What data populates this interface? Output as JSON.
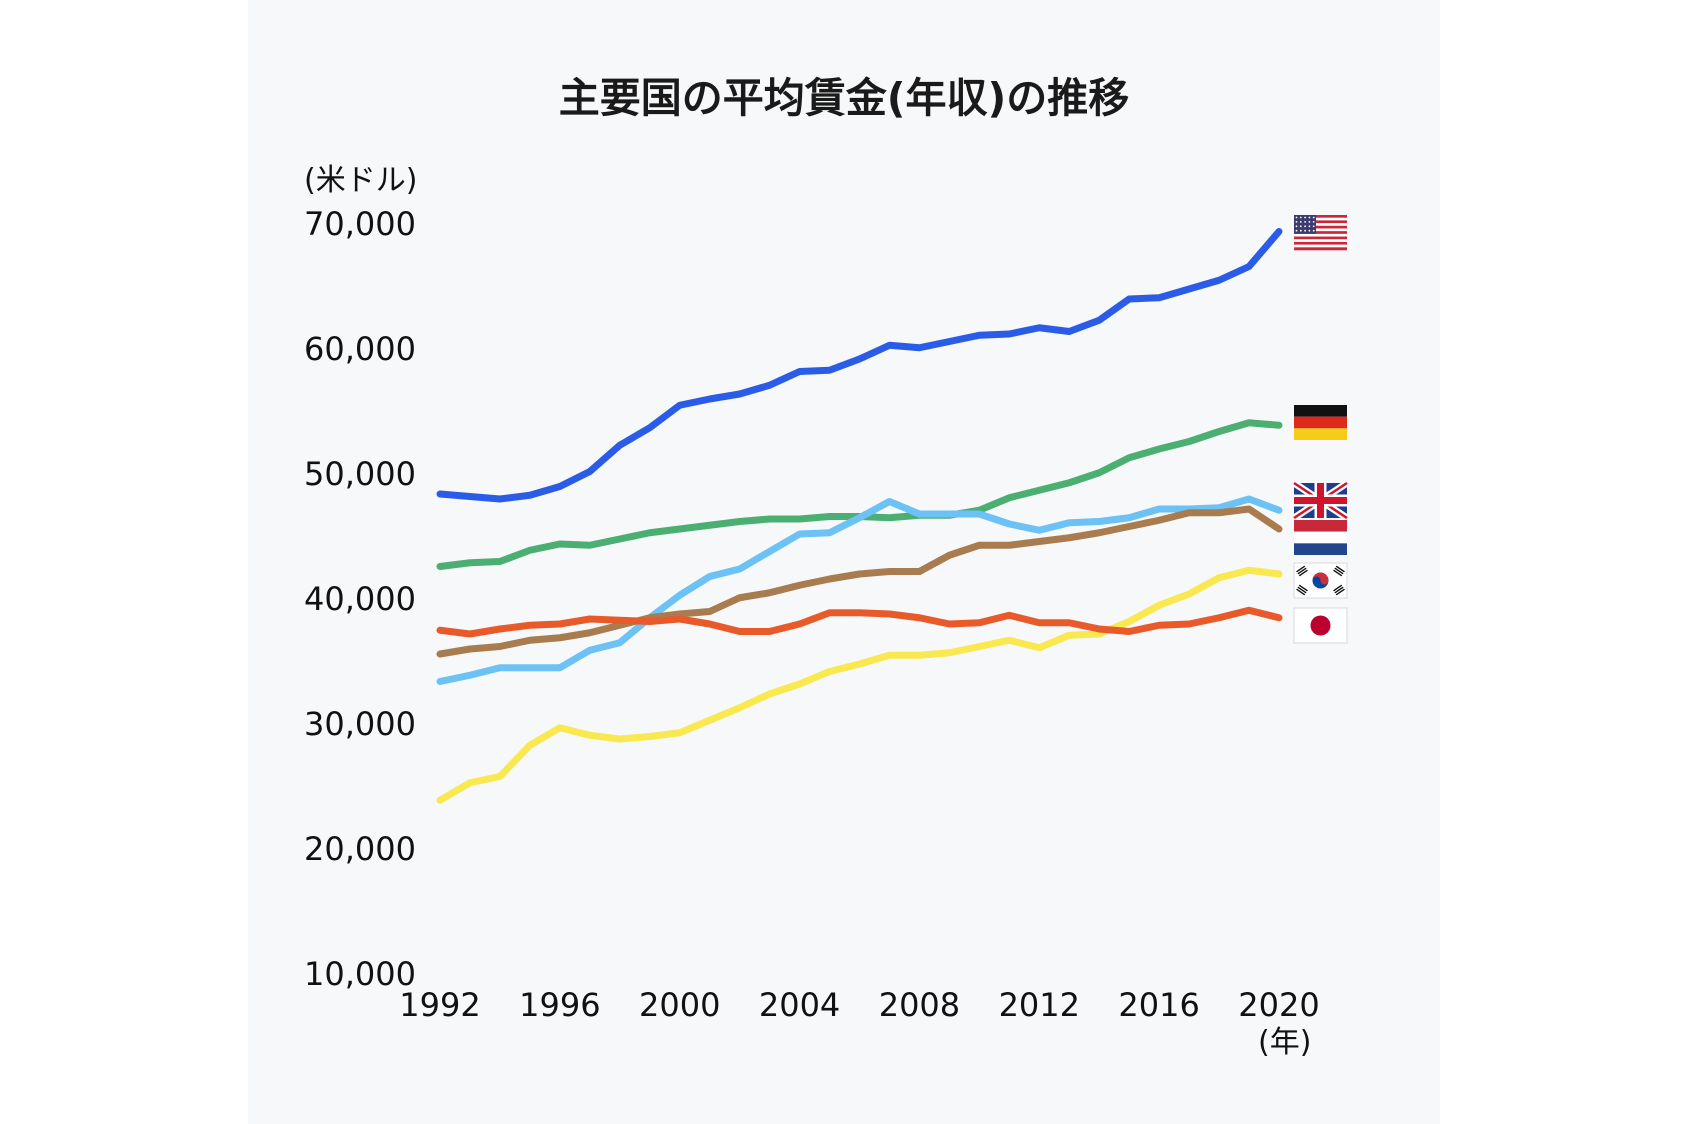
{
  "chart_data": {
    "type": "line",
    "title": "主要国の平均賃金(年収)の推移",
    "y_unit_label": "(米ドル)",
    "x_unit_label": "(年)",
    "ylim": [
      10000,
      70000
    ],
    "xlim": [
      1992,
      2020
    ],
    "y_ticks": [
      10000,
      20000,
      30000,
      40000,
      50000,
      60000,
      70000
    ],
    "y_tick_labels": [
      "10,000",
      "20,000",
      "30,000",
      "40,000",
      "50,000",
      "60,000",
      "70,000"
    ],
    "x_ticks": [
      1992,
      1996,
      2000,
      2004,
      2008,
      2012,
      2016,
      2020
    ],
    "x_tick_labels": [
      "1992",
      "1996",
      "2000",
      "2004",
      "2008",
      "2012",
      "2016",
      "2020"
    ],
    "grid": false,
    "legend": "flag icons at right end of lines",
    "x": [
      1992,
      1993,
      1994,
      1995,
      1996,
      1997,
      1998,
      1999,
      2000,
      2001,
      2002,
      2003,
      2004,
      2005,
      2006,
      2007,
      2008,
      2009,
      2010,
      2011,
      2012,
      2013,
      2014,
      2015,
      2016,
      2017,
      2018,
      2019,
      2020
    ],
    "series": [
      {
        "flag": "usa-flag-icon",
        "color": "#2a5ce8",
        "values": [
          48400,
          48200,
          48000,
          48300,
          49000,
          50200,
          52300,
          53700,
          55500,
          56000,
          56400,
          57100,
          58200,
          58300,
          59200,
          60300,
          60100,
          60600,
          61100,
          61200,
          61700,
          61400,
          62300,
          64000,
          64100,
          64800,
          65500,
          66600,
          69400
        ]
      },
      {
        "flag": "germany-flag-icon",
        "color": "#4caf72",
        "values": [
          42600,
          42900,
          43000,
          43900,
          44400,
          44300,
          44800,
          45300,
          45600,
          45900,
          46200,
          46400,
          46400,
          46600,
          46600,
          46500,
          46700,
          46700,
          47100,
          48100,
          48700,
          49300,
          50100,
          51300,
          52000,
          52600,
          53400,
          54100,
          53900
        ]
      },
      {
        "flag": "uk-flag-icon",
        "color": "#6cc1f5",
        "values": [
          33400,
          33900,
          34500,
          34500,
          34500,
          35900,
          36500,
          38500,
          40300,
          41800,
          42400,
          43800,
          45200,
          45300,
          46500,
          47800,
          46800,
          46800,
          46800,
          46000,
          45500,
          46100,
          46200,
          46500,
          47200,
          47200,
          47300,
          48000,
          47100
        ]
      },
      {
        "flag": "netherlands-flag-icon",
        "color": "#a87c4f",
        "values": [
          35600,
          36000,
          36200,
          36700,
          36900,
          37300,
          37900,
          38500,
          38800,
          39000,
          40100,
          40500,
          41100,
          41600,
          42000,
          42200,
          42200,
          43500,
          44300,
          44300,
          44600,
          44900,
          45300,
          45800,
          46300,
          46900,
          46900,
          47200,
          45600
        ]
      },
      {
        "flag": "korea-flag-icon",
        "color": "#f9e84f",
        "values": [
          23900,
          25300,
          25800,
          28300,
          29700,
          29100,
          28800,
          29000,
          29300,
          30300,
          31300,
          32400,
          33200,
          34200,
          34800,
          35500,
          35500,
          35700,
          36200,
          36700,
          36100,
          37100,
          37200,
          38200,
          39500,
          40400,
          41700,
          42300,
          42000
        ]
      },
      {
        "flag": "japan-flag-icon",
        "color": "#e95a2b",
        "values": [
          37500,
          37200,
          37600,
          37900,
          38000,
          38400,
          38300,
          38200,
          38400,
          38000,
          37400,
          37400,
          38000,
          38900,
          38900,
          38800,
          38500,
          38000,
          38100,
          38700,
          38100,
          38100,
          37600,
          37400,
          37900,
          38000,
          38500,
          39100,
          38500
        ]
      }
    ]
  }
}
